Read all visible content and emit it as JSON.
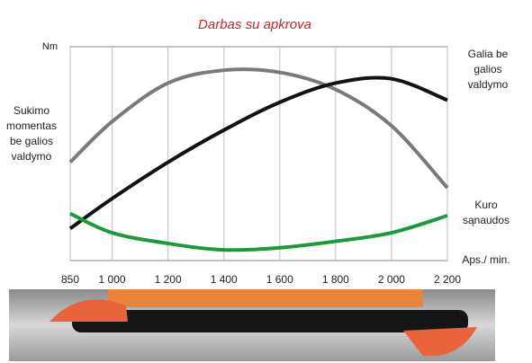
{
  "chart_data": {
    "type": "line",
    "title": "Darbas su apkrova",
    "y_label": "Nm",
    "x_label": "Aps./ min.",
    "x": [
      850,
      1000,
      1200,
      1400,
      1600,
      1800,
      2000,
      2200
    ],
    "series": [
      {
        "name": "Sukimo momentas be galios valdymo",
        "color": "#7a7a7a",
        "values": [
          46,
          65,
          83,
          89,
          88,
          80,
          63,
          34
        ]
      },
      {
        "name": "Galia be galios valdymo",
        "color": "#111111",
        "values": [
          15,
          29,
          46,
          61,
          74,
          83,
          85,
          75
        ]
      },
      {
        "name": "Kuro sąnaudos",
        "color": "#1a9a3c",
        "values": [
          22,
          13,
          8,
          5,
          6,
          9,
          13,
          21
        ]
      }
    ],
    "xlim": [
      850,
      2200
    ],
    "xticks": [
      850,
      {
        "value": 1000,
        "label": "1 000"
      },
      {
        "value": 1200,
        "label": "1 200"
      },
      {
        "value": 1400,
        "label": "1 400"
      },
      {
        "value": 1600,
        "label": "1 600"
      },
      {
        "value": 1800,
        "label": "1 800"
      },
      {
        "value": 2000,
        "label": "2 000"
      },
      {
        "value": 2200,
        "label": "2 200"
      }
    ],
    "ylim": [
      0,
      100
    ],
    "grid": true
  }
}
